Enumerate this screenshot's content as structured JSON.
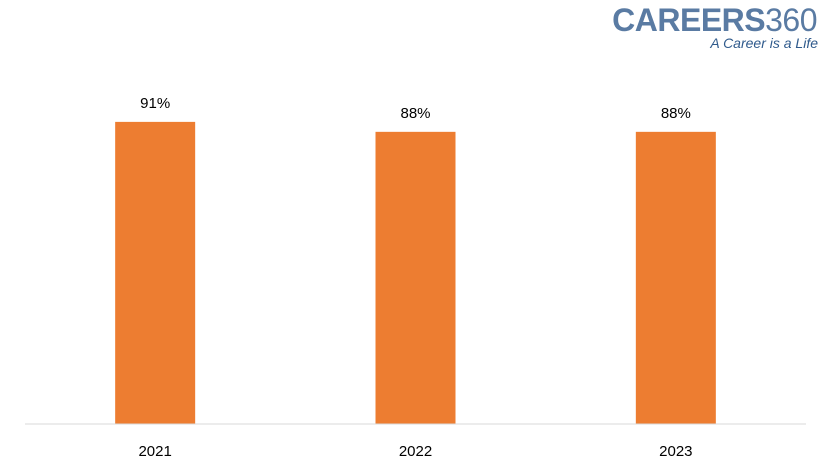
{
  "brand": {
    "name": "CAREERS",
    "number": "360",
    "tagline": "A Career is a Life"
  },
  "colors": {
    "bar": "#ed7d31",
    "axis": "#d9d9d9",
    "logo": "#5a7ba3"
  },
  "chart_data": {
    "type": "bar",
    "categories": [
      "2021",
      "2022",
      "2023"
    ],
    "values": [
      91,
      88,
      88
    ],
    "data_labels": [
      "91%",
      "88%",
      "88%"
    ],
    "ylim": [
      0,
      100
    ],
    "grid": false,
    "legend": "none"
  }
}
